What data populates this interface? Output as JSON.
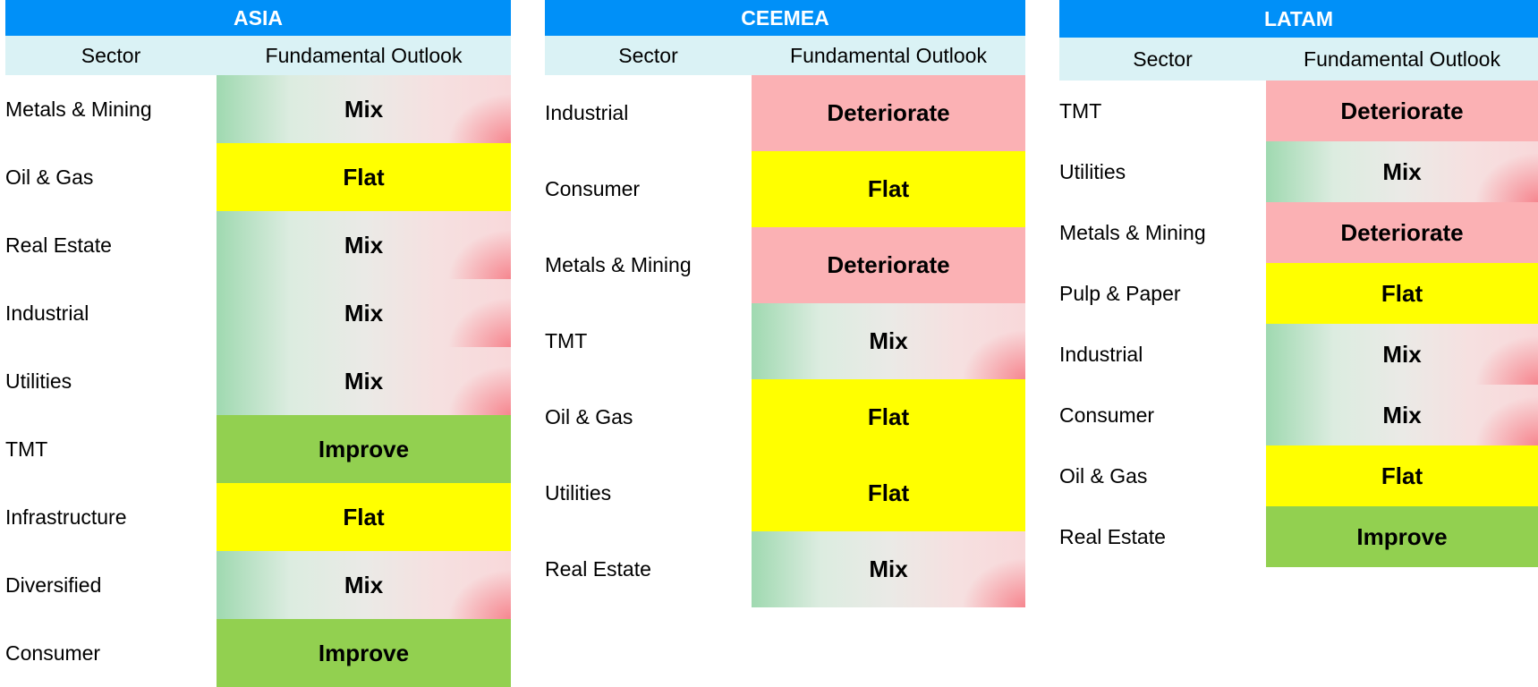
{
  "colors": {
    "region_header": "#0090f8",
    "column_header": "#daf2f5",
    "flat": "#ffff00",
    "improve": "#92d050",
    "deteriorate": "#fbb1b4",
    "mix_start": "#9fd9b0",
    "mix_end": "#f8d8da"
  },
  "columns": {
    "sector": "Sector",
    "outlook": "Fundamental Outlook"
  },
  "asia": {
    "title": "ASIA",
    "rows": [
      {
        "sector": "Metals & Mining",
        "outlook": "Mix"
      },
      {
        "sector": "Oil & Gas",
        "outlook": "Flat"
      },
      {
        "sector": "Real Estate",
        "outlook": "Mix"
      },
      {
        "sector": "Industrial",
        "outlook": "Mix"
      },
      {
        "sector": "Utilities",
        "outlook": "Mix"
      },
      {
        "sector": "TMT",
        "outlook": "Improve"
      },
      {
        "sector": "Infrastructure",
        "outlook": "Flat"
      },
      {
        "sector": "Diversified",
        "outlook": "Mix"
      },
      {
        "sector": "Consumer",
        "outlook": "Improve"
      }
    ]
  },
  "ceemea": {
    "title": "CEEMEA",
    "rows": [
      {
        "sector": "Industrial",
        "outlook": "Deteriorate"
      },
      {
        "sector": "Consumer",
        "outlook": "Flat"
      },
      {
        "sector": "Metals & Mining",
        "outlook": "Deteriorate"
      },
      {
        "sector": "TMT",
        "outlook": "Mix"
      },
      {
        "sector": "Oil & Gas",
        "outlook": "Flat"
      },
      {
        "sector": "Utilities",
        "outlook": "Flat"
      },
      {
        "sector": "Real Estate",
        "outlook": "Mix"
      }
    ]
  },
  "latam": {
    "title": "LATAM",
    "rows": [
      {
        "sector": "TMT",
        "outlook": "Deteriorate"
      },
      {
        "sector": "Utilities",
        "outlook": "Mix"
      },
      {
        "sector": "Metals & Mining",
        "outlook": "Deteriorate"
      },
      {
        "sector": "Pulp & Paper",
        "outlook": "Flat"
      },
      {
        "sector": "Industrial",
        "outlook": "Mix"
      },
      {
        "sector": "Consumer",
        "outlook": "Mix"
      },
      {
        "sector": "Oil & Gas",
        "outlook": "Flat"
      },
      {
        "sector": "Real Estate",
        "outlook": "Improve"
      }
    ]
  }
}
